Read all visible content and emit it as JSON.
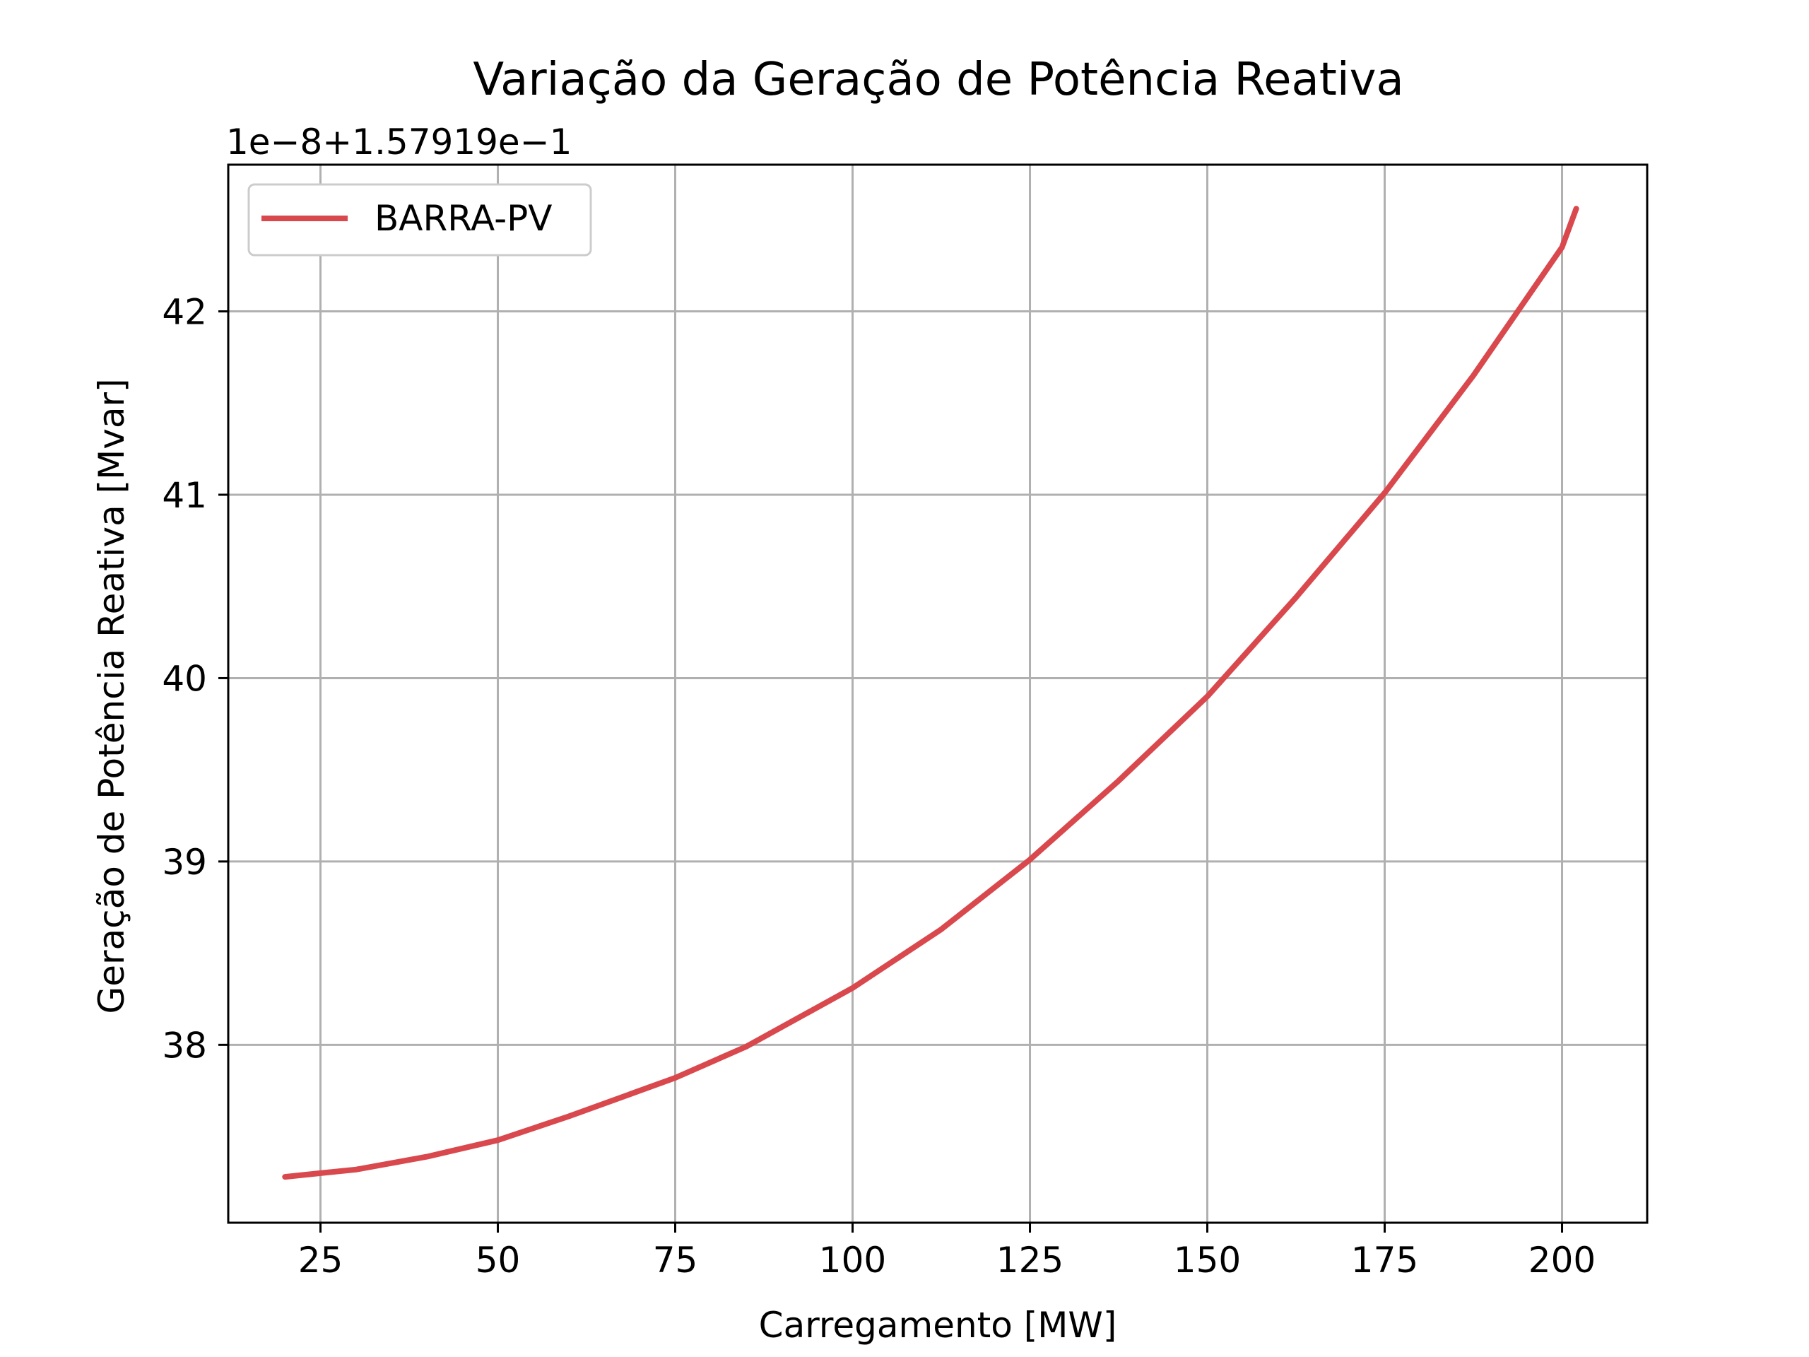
{
  "chart_data": {
    "type": "line",
    "title": "Variação da Geração de Potência Reativa",
    "offset_label": "1e−8+1.57919e−1",
    "xlabel": "Carregamento [MW]",
    "ylabel": "Geração de Potência Reativa [Mvar]",
    "xlim": [
      12,
      212
    ],
    "ylim": [
      37.03,
      42.8
    ],
    "xticks": [
      25,
      50,
      75,
      100,
      125,
      150,
      175,
      200
    ],
    "yticks": [
      38,
      39,
      40,
      41,
      42
    ],
    "grid": true,
    "legend_position": "upper-left",
    "series": [
      {
        "name": "BARRA-PV",
        "color": "#d9484d",
        "x": [
          20,
          25,
          30,
          40,
          50,
          60,
          75,
          85,
          100,
          112.5,
          125,
          137.5,
          150,
          162.5,
          175,
          187.5,
          200,
          202
        ],
        "y": [
          37.28,
          37.3,
          37.32,
          37.39,
          37.48,
          37.61,
          37.82,
          37.99,
          38.31,
          38.63,
          39.01,
          39.44,
          39.9,
          40.44,
          41.01,
          41.65,
          42.35,
          42.56
        ]
      }
    ]
  }
}
